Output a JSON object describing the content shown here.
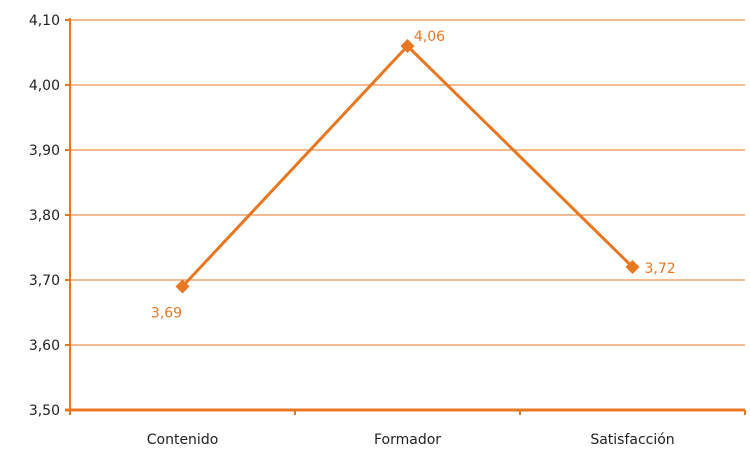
{
  "colors": {
    "accent": "#E87722",
    "axis_text": "#222222",
    "background": "#FFFFFF"
  },
  "chart_data": {
    "type": "line",
    "categories": [
      "Contenido",
      "Formador",
      "Satisfacción"
    ],
    "series": [
      {
        "values": [
          3.69,
          4.06,
          3.72
        ],
        "value_labels": [
          "3,69",
          "4,06",
          "3,72"
        ]
      }
    ],
    "y_ticks": [
      3.5,
      3.6,
      3.7,
      3.8,
      3.9,
      4.0,
      4.1
    ],
    "y_tick_labels": [
      "3,50",
      "3,60",
      "3,70",
      "3,80",
      "3,90",
      "4,00",
      "4,10"
    ],
    "ylim": [
      3.5,
      4.1
    ],
    "grid": true,
    "legend": "none",
    "marker": "diamond",
    "title": "",
    "xlabel": "",
    "ylabel": ""
  }
}
